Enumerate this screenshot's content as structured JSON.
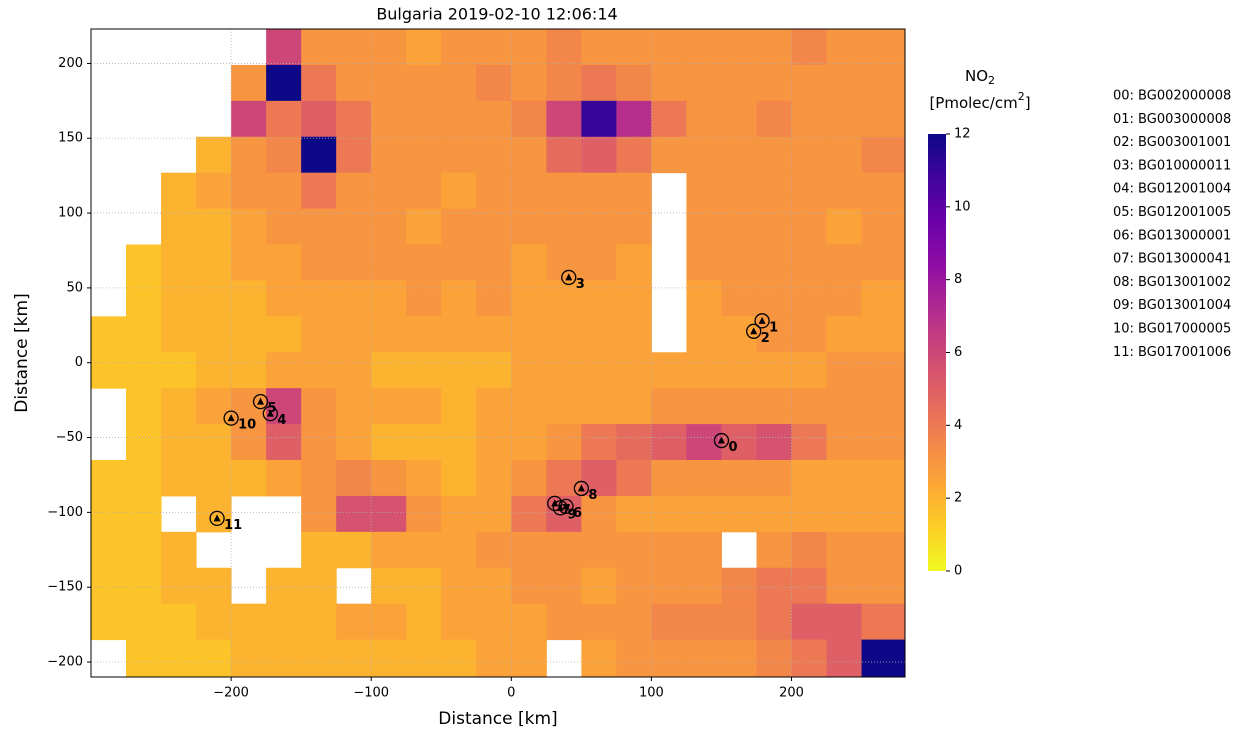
{
  "chart_data": {
    "type": "heatmap",
    "title": "Bulgaria 2019-02-10 12:06:14",
    "x_label": "Distance [km]",
    "y_label": "Distance [km]",
    "xlim": [
      -300,
      281
    ],
    "ylim": [
      -210,
      223
    ],
    "xticks": [
      {
        "value": -200,
        "label": "−200"
      },
      {
        "value": -100,
        "label": "−100"
      },
      0,
      100,
      200
    ],
    "yticks": [
      {
        "value": -200,
        "label": "−200"
      },
      {
        "value": -150,
        "label": "−150"
      },
      {
        "value": -100,
        "label": "−100"
      },
      {
        "value": -50,
        "label": "−50"
      },
      0,
      50,
      100,
      150,
      200
    ],
    "grid": true,
    "colormap": "plasma_r",
    "colorbar": {
      "label": [
        "NO",
        "2",
        "[Pmolec/cm",
        "2",
        "]"
      ],
      "lim": [
        0,
        12
      ],
      "ticks": [
        0,
        2,
        4,
        6,
        8,
        10,
        12
      ]
    },
    "x": [
      -287.5,
      -262.5,
      -237.5,
      -212.5,
      -187.5,
      -162.5,
      -137.5,
      -112.5,
      -87.5,
      -62.5,
      -37.5,
      -12.5,
      12.5,
      37.5,
      62.5,
      87.5,
      112.5,
      137.5,
      162.5,
      187.5,
      212.5,
      237.5,
      262.5
    ],
    "y": [
      211,
      187,
      163,
      139,
      115,
      91,
      67,
      43,
      19,
      -5,
      -29,
      -53,
      -77,
      -101,
      -125,
      -149,
      -173,
      -197
    ],
    "z": [
      [
        null,
        null,
        null,
        null,
        null,
        6,
        3,
        3,
        3,
        2.5,
        3,
        3,
        3,
        3.5,
        3,
        3,
        3,
        3,
        3,
        3,
        3.5,
        3,
        3
      ],
      [
        null,
        null,
        null,
        null,
        3,
        12,
        4,
        3,
        3,
        3,
        3,
        3.5,
        3,
        3.5,
        4,
        3.5,
        3,
        3,
        3,
        3,
        3,
        3,
        3
      ],
      [
        null,
        null,
        null,
        null,
        6,
        4,
        5,
        4,
        3,
        3,
        3,
        3,
        3.5,
        6,
        11,
        7,
        4,
        3,
        3,
        3.5,
        3,
        3,
        3
      ],
      [
        null,
        null,
        null,
        2,
        3,
        3.5,
        12,
        4,
        3,
        3,
        3,
        3,
        3,
        4.5,
        5,
        4,
        3,
        3,
        3,
        3,
        3,
        3,
        3.5
      ],
      [
        null,
        null,
        2,
        2.5,
        3,
        3,
        4,
        3,
        3,
        3,
        2.5,
        3,
        3,
        3,
        3,
        3,
        null,
        3,
        3,
        3,
        3,
        3,
        3
      ],
      [
        null,
        null,
        2,
        2,
        2.5,
        3,
        3,
        3,
        3,
        2.5,
        3,
        3,
        3,
        3,
        3,
        3,
        null,
        3,
        3,
        3,
        3,
        2.5,
        3
      ],
      [
        null,
        1.5,
        2,
        2,
        2.5,
        2.5,
        3,
        3,
        3,
        3,
        3,
        3,
        2.5,
        3,
        3,
        2.5,
        null,
        3,
        3,
        3,
        3,
        3,
        3
      ],
      [
        null,
        1.5,
        2,
        2,
        2,
        2.5,
        2.5,
        2.5,
        2.5,
        3,
        2.5,
        3,
        2.5,
        2.5,
        2.5,
        2.5,
        null,
        2.5,
        3,
        3,
        3,
        3,
        2.5
      ],
      [
        1.5,
        1.5,
        2,
        2,
        2,
        2,
        2.5,
        2.5,
        2.5,
        2.5,
        2.5,
        2.5,
        2.5,
        2.5,
        2.5,
        2.5,
        null,
        2.5,
        2.5,
        3,
        3,
        2.5,
        2.5
      ],
      [
        1.5,
        1.5,
        1.5,
        2,
        2,
        2.5,
        2.5,
        2.5,
        2,
        2,
        2,
        2,
        2.5,
        2.5,
        2.5,
        2.5,
        2.5,
        2.5,
        2.5,
        2.5,
        2.5,
        3,
        3
      ],
      [
        null,
        1.5,
        2,
        2.5,
        3,
        6,
        3,
        2.5,
        2.5,
        2.5,
        2,
        2.5,
        2.5,
        2.5,
        2.5,
        2.5,
        3,
        3,
        3,
        3,
        3,
        3,
        3
      ],
      [
        null,
        1.5,
        2,
        2,
        3,
        5,
        3,
        2.5,
        2,
        2,
        2,
        2.5,
        2.5,
        3,
        4,
        4.5,
        5,
        6,
        5,
        5.5,
        4,
        3,
        3
      ],
      [
        1.5,
        1.5,
        2,
        2,
        2,
        2.5,
        3,
        3.5,
        3,
        2.5,
        2,
        2.5,
        3,
        4,
        5,
        4,
        3,
        3,
        3,
        3,
        2.5,
        2.5,
        2.5
      ],
      [
        1.5,
        1.5,
        null,
        2,
        null,
        null,
        3,
        5.5,
        5.5,
        3,
        2.5,
        2.5,
        4,
        5,
        3,
        2.5,
        2.5,
        2.5,
        2.5,
        2.5,
        2.5,
        2.5,
        2.5
      ],
      [
        1.5,
        1.5,
        2,
        null,
        null,
        null,
        2,
        2,
        2.5,
        2.5,
        2.5,
        3,
        3,
        3,
        3,
        3,
        3,
        3,
        null,
        3,
        3.5,
        3,
        3
      ],
      [
        1.5,
        1.5,
        2,
        2,
        null,
        2,
        2,
        null,
        2,
        2,
        2.5,
        2.5,
        3,
        3,
        2.5,
        3,
        3,
        3,
        3.5,
        4,
        4,
        3,
        3
      ],
      [
        1.5,
        1.5,
        1.5,
        2,
        2,
        2,
        2,
        2.5,
        2.5,
        2,
        2.5,
        2.5,
        2.5,
        3,
        3,
        3,
        3.5,
        3.5,
        3.5,
        4,
        5,
        5,
        4
      ],
      [
        null,
        1.5,
        1.5,
        1.5,
        2,
        2,
        2,
        2,
        2,
        2,
        2,
        2.5,
        2.5,
        null,
        2.5,
        3,
        3,
        3,
        3,
        3.5,
        4,
        5,
        12
      ]
    ],
    "stations": [
      {
        "label": "0",
        "name": "00: BG002000008",
        "color": "#0000ff",
        "x": 150,
        "y": -52
      },
      {
        "label": "1",
        "name": "01: BG003000008",
        "color": "#0000ff",
        "x": 179,
        "y": 28
      },
      {
        "label": "2",
        "name": "02: BG003001001",
        "color": "#0000ff",
        "x": 173,
        "y": 21
      },
      {
        "label": "3",
        "name": "03: BG010000011",
        "color": "#0000ff",
        "x": 41,
        "y": 57
      },
      {
        "label": "4",
        "name": "04: BG012001004",
        "color": "#008000",
        "x": -172,
        "y": -34
      },
      {
        "label": "5",
        "name": "05: BG012001005",
        "color": "#008000",
        "x": -179,
        "y": -26
      },
      {
        "label": "6",
        "name": "06: BG013000001",
        "color": "#ff0000",
        "x": 39,
        "y": -96
      },
      {
        "label": "7",
        "name": "07: BG013000041",
        "color": "#ff0000",
        "x": 31,
        "y": -94
      },
      {
        "label": "8",
        "name": "08: BG013001002",
        "color": "#ff0000",
        "x": 50,
        "y": -84
      },
      {
        "label": "9",
        "name": "09: BG013001004",
        "color": "#008000",
        "x": 35,
        "y": -97
      },
      {
        "label": "10",
        "name": "10: BG017000005",
        "color": "#0000ff",
        "x": -200,
        "y": -37
      },
      {
        "label": "11",
        "name": "11: BG017001006",
        "color": "#008000",
        "x": -210,
        "y": -104
      }
    ]
  }
}
